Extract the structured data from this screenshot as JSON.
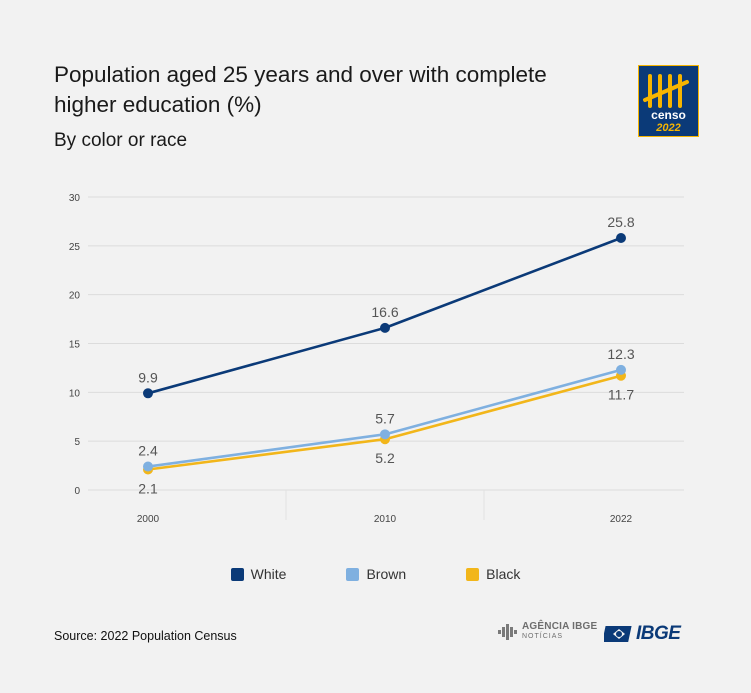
{
  "chart_data": {
    "type": "line",
    "title": "Population aged 25 years and over with complete higher education (%)",
    "subtitle": "By color or race",
    "x": [
      "2000",
      "2010",
      "2022"
    ],
    "ylim": [
      0,
      30
    ],
    "yticks": [
      "0",
      "5",
      "10",
      "15",
      "20",
      "25",
      "30"
    ],
    "grid": "horizontal",
    "legend_position": "bottom",
    "series": [
      {
        "name": "White",
        "color": "#0b3a78",
        "values": [
          9.9,
          16.6,
          25.8
        ],
        "labels": [
          "9.9",
          "16.6",
          "25.8"
        ],
        "label_pos": [
          "above",
          "above",
          "above"
        ]
      },
      {
        "name": "Brown",
        "color": "#7fb0e0",
        "values": [
          2.4,
          5.7,
          12.3
        ],
        "labels": [
          "2.4",
          "5.7",
          "12.3"
        ],
        "label_pos": [
          "above",
          "above",
          "above"
        ]
      },
      {
        "name": "Black",
        "color": "#f2b61a",
        "values": [
          2.1,
          5.2,
          11.7
        ],
        "labels": [
          "2.1",
          "5.2",
          "11.7"
        ],
        "label_pos": [
          "below",
          "below",
          "below"
        ]
      }
    ]
  },
  "logo": {
    "line1": "censo",
    "line2": "2022"
  },
  "source": "Source: 2022 Population Census",
  "brand": {
    "agencia_top": "AGÊNCIA IBGE",
    "agencia_bottom": "NOTÍCIAS",
    "ibge": "IBGE"
  },
  "colors": {
    "white": "#0b3a78",
    "brown": "#7fb0e0",
    "black": "#f2b61a",
    "background": "#f2f2f2"
  }
}
